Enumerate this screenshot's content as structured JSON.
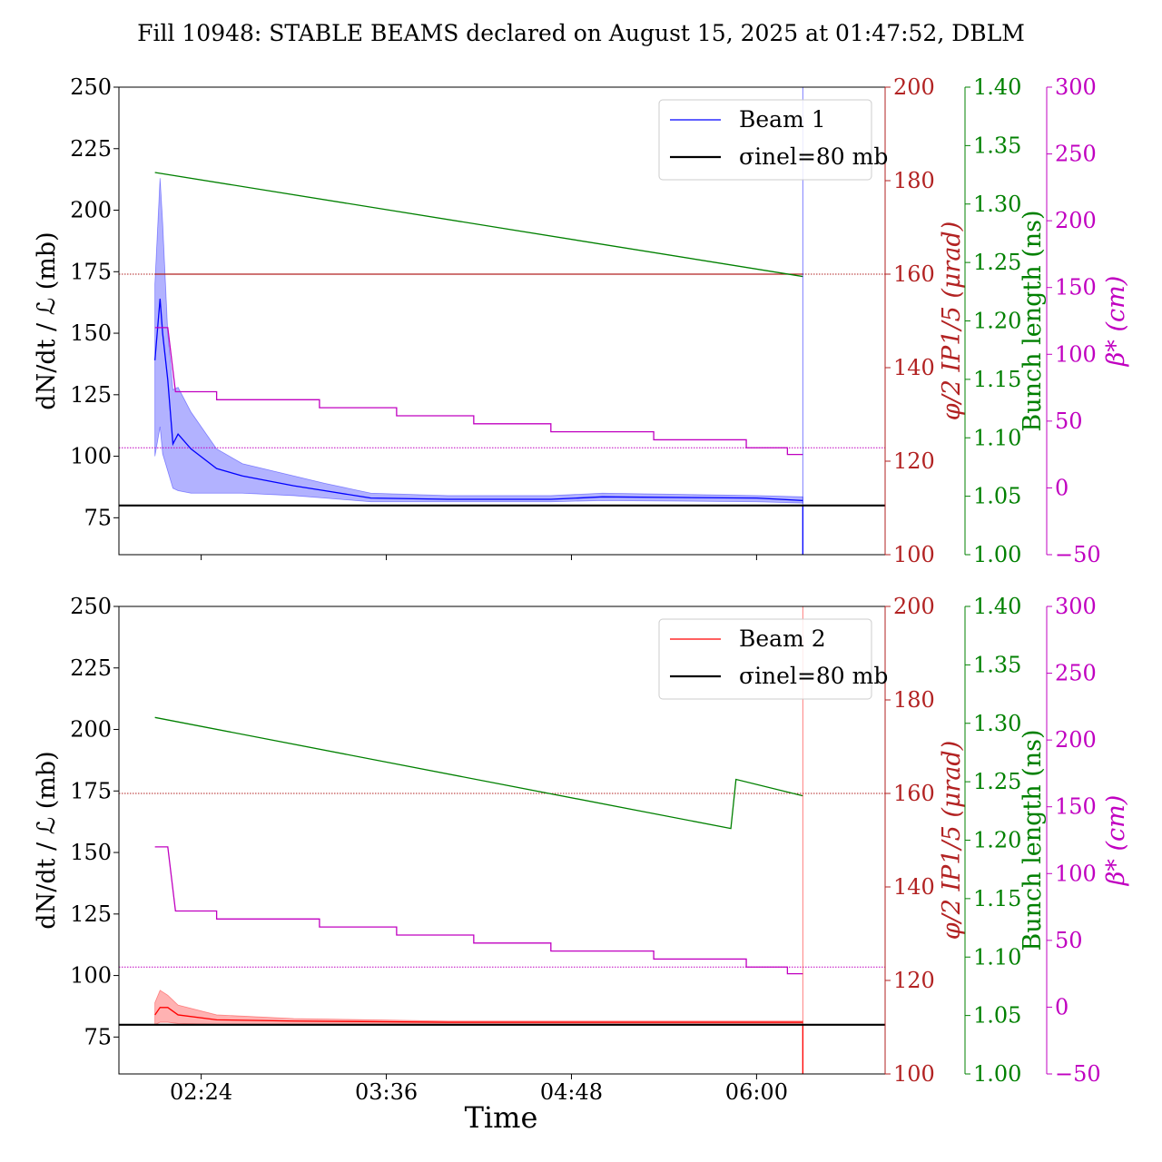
{
  "title": "Fill 10948: STABLE BEAMS declared on August 15, 2025 at 01:47:52, DBLM",
  "xlabel": "Time",
  "colors": {
    "beam1": "#0000ff",
    "beam2": "#ff0000",
    "crossing": "#b22222",
    "bunch": "#008000",
    "beta": "#c000c0",
    "ref": "#000000"
  },
  "chart_data": [
    {
      "type": "line",
      "panel": "top",
      "legend": {
        "position": "top-right",
        "entries": [
          "Beam 1",
          "σinel=80 mb"
        ]
      },
      "x_ticks": [
        "02:24",
        "03:36",
        "04:48",
        "06:00"
      ],
      "xlim": [
        "01:52",
        "06:50"
      ],
      "y_axes": {
        "left": {
          "label": "dN/dt / ℒ (mb)",
          "lim": [
            60,
            250
          ],
          "ticks": [
            75,
            100,
            125,
            150,
            175,
            200,
            225,
            250
          ]
        },
        "crossing": {
          "label": "φ/2 IP1/5 (μrad)",
          "lim": [
            100,
            200
          ],
          "ticks": [
            100,
            120,
            140,
            160,
            180,
            200
          ]
        },
        "bunch": {
          "label": "Bunch length (ns)",
          "lim": [
            1.0,
            1.4
          ],
          "ticks": [
            "1.00",
            "1.05",
            "1.10",
            "1.15",
            "1.20",
            "1.25",
            "1.30",
            "1.35",
            "1.40"
          ]
        },
        "beta": {
          "label": "β* (cm)",
          "lim": [
            -50,
            300
          ],
          "ticks": [
            -50,
            0,
            50,
            100,
            150,
            200,
            250,
            300
          ]
        }
      },
      "reference_line": {
        "name": "σinel=80 mb",
        "value": 80
      },
      "dotted_refs": {
        "crossing": 160,
        "beta": 30
      },
      "series": [
        {
          "name": "Beam 1",
          "axis": "left",
          "x": [
            "02:06",
            "02:08",
            "02:09",
            "02:11",
            "02:13",
            "02:15",
            "02:20",
            "02:30",
            "02:40",
            "03:00",
            "03:12",
            "03:30",
            "04:00",
            "04:40",
            "05:00",
            "06:00",
            "06:18"
          ],
          "values": [
            139,
            164,
            150,
            131,
            105,
            109,
            103,
            95,
            92,
            88,
            86,
            83,
            82.5,
            82.5,
            83.5,
            83,
            82
          ],
          "band_upper": [
            170,
            213,
            195,
            150,
            127,
            128,
            118,
            103,
            97,
            92,
            89,
            85,
            84,
            84,
            85,
            84,
            83.5
          ],
          "band_lower": [
            100,
            112,
            101,
            94,
            87,
            86,
            85,
            85,
            85,
            84,
            83,
            81.5,
            81.5,
            81.5,
            82,
            81.5,
            81
          ]
        },
        {
          "name": "Crossing angle",
          "axis": "crossing",
          "x": [
            "02:06",
            "02:11",
            "02:14",
            "02:30",
            "03:00",
            "03:30",
            "04:00",
            "04:30",
            "05:00",
            "05:30",
            "06:00",
            "06:18"
          ],
          "values": [
            160,
            160,
            160,
            160,
            160,
            160,
            160,
            160,
            160,
            160,
            160,
            160
          ]
        },
        {
          "name": "Bunch length",
          "axis": "bunch",
          "x": [
            "02:06",
            "06:18"
          ],
          "values": [
            1.327,
            1.238
          ]
        },
        {
          "name": "β*",
          "axis": "beta",
          "x": [
            "02:06",
            "02:11",
            "02:14",
            "02:30",
            "02:30",
            "03:10",
            "03:10",
            "03:40",
            "03:40",
            "04:10",
            "04:10",
            "04:40",
            "04:40",
            "05:20",
            "05:20",
            "05:56",
            "05:56",
            "06:12",
            "06:12",
            "06:18"
          ],
          "values": [
            120,
            120,
            72,
            72,
            66,
            66,
            60,
            60,
            54,
            54,
            48,
            48,
            42,
            42,
            36,
            36,
            30,
            30,
            25,
            25
          ]
        }
      ]
    },
    {
      "type": "line",
      "panel": "bottom",
      "legend": {
        "position": "top-right",
        "entries": [
          "Beam 2",
          "σinel=80 mb"
        ]
      },
      "x_ticks": [
        "02:24",
        "03:36",
        "04:48",
        "06:00"
      ],
      "xlim": [
        "01:52",
        "06:50"
      ],
      "y_axes": {
        "left": {
          "label": "dN/dt / ℒ (mb)",
          "lim": [
            60,
            250
          ],
          "ticks": [
            75,
            100,
            125,
            150,
            175,
            200,
            225,
            250
          ]
        },
        "crossing": {
          "label": "φ/2 IP1/5 (μrad)",
          "lim": [
            100,
            200
          ],
          "ticks": [
            100,
            120,
            140,
            160,
            180,
            200
          ]
        },
        "bunch": {
          "label": "Bunch length (ns)",
          "lim": [
            1.0,
            1.4
          ],
          "ticks": [
            "1.00",
            "1.05",
            "1.10",
            "1.15",
            "1.20",
            "1.25",
            "1.30",
            "1.35",
            "1.40"
          ]
        },
        "beta": {
          "label": "β* (cm)",
          "lim": [
            -50,
            300
          ],
          "ticks": [
            -50,
            0,
            50,
            100,
            150,
            200,
            250,
            300
          ]
        }
      },
      "reference_line": {
        "name": "σinel=80 mb",
        "value": 80
      },
      "dotted_refs": {
        "crossing": 160,
        "beta": 30
      },
      "series": [
        {
          "name": "Beam 2",
          "axis": "left",
          "x": [
            "02:06",
            "02:08",
            "02:11",
            "02:15",
            "02:30",
            "03:00",
            "04:00",
            "05:00",
            "06:00",
            "06:18"
          ],
          "values": [
            84,
            87,
            87,
            84,
            82,
            81.5,
            81,
            81,
            81,
            81
          ],
          "band_upper": [
            89,
            94,
            92,
            88,
            84,
            82.5,
            81.5,
            81.5,
            81.5,
            81.5
          ],
          "band_lower": [
            80,
            81,
            81,
            80.5,
            80.2,
            80.2,
            80.2,
            80.2,
            80.2,
            80.2
          ]
        },
        {
          "name": "Bunch length",
          "axis": "bunch",
          "x": [
            "02:06",
            "05:50",
            "05:52",
            "06:18"
          ],
          "values": [
            1.305,
            1.21,
            1.252,
            1.238
          ]
        },
        {
          "name": "β*",
          "axis": "beta",
          "x": [
            "02:06",
            "02:11",
            "02:14",
            "02:30",
            "02:30",
            "03:10",
            "03:10",
            "03:40",
            "03:40",
            "04:10",
            "04:10",
            "04:40",
            "04:40",
            "05:20",
            "05:20",
            "05:56",
            "05:56",
            "06:12",
            "06:12",
            "06:18"
          ],
          "values": [
            120,
            120,
            72,
            72,
            66,
            66,
            60,
            60,
            54,
            54,
            48,
            48,
            42,
            42,
            36,
            36,
            30,
            30,
            25,
            25
          ]
        }
      ]
    }
  ]
}
